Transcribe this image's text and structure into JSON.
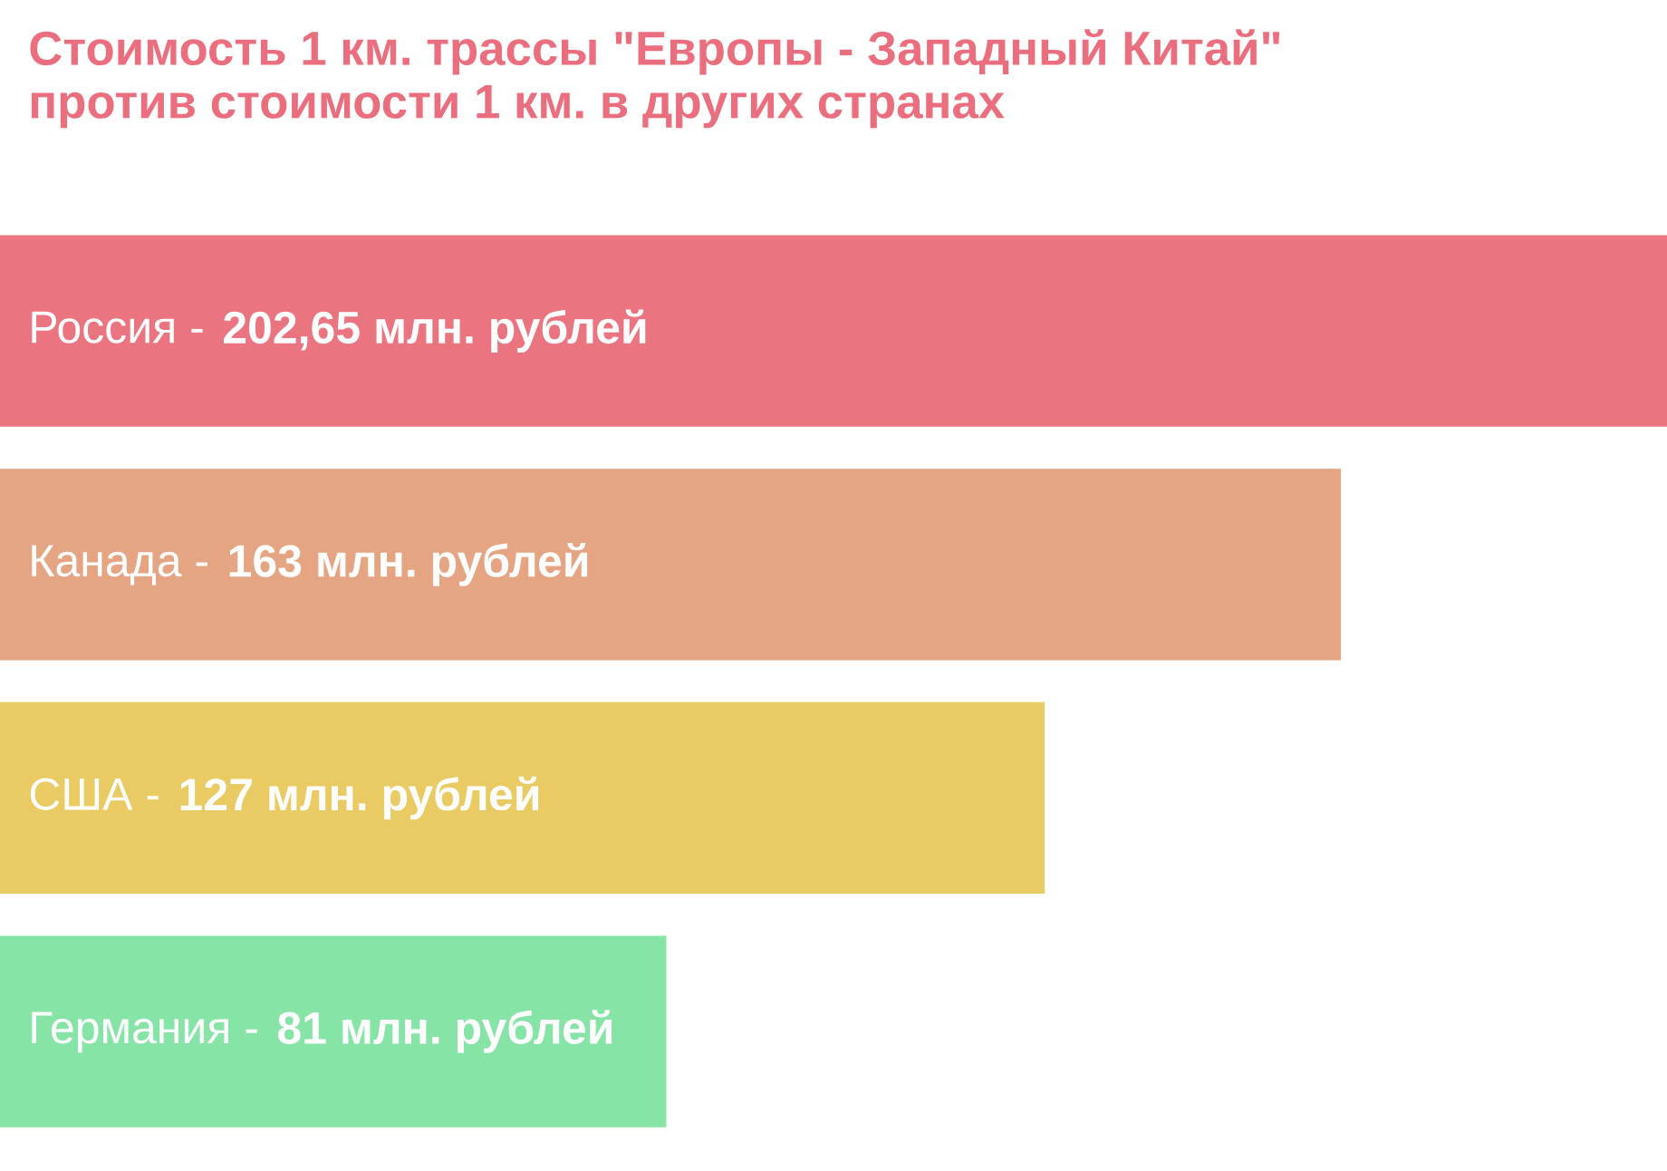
{
  "chart_data": {
    "type": "bar",
    "orientation": "horizontal",
    "title": "Стоимость 1 км. трассы \"Европы - Западный Китай\"\nпротив стоимости 1 км. в других странах",
    "categories": [
      "Россия -",
      "Канада -",
      "США -",
      "Германия -"
    ],
    "values": [
      202.65,
      163,
      127,
      81
    ],
    "value_labels": [
      "202,65 млн. рублей",
      "163 млн. рублей",
      "127 млн. рублей",
      "81 млн. рублей"
    ],
    "colors": [
      "#ea7480",
      "#e5a582",
      "#eaca62",
      "#86e4a7"
    ],
    "legend": false
  }
}
